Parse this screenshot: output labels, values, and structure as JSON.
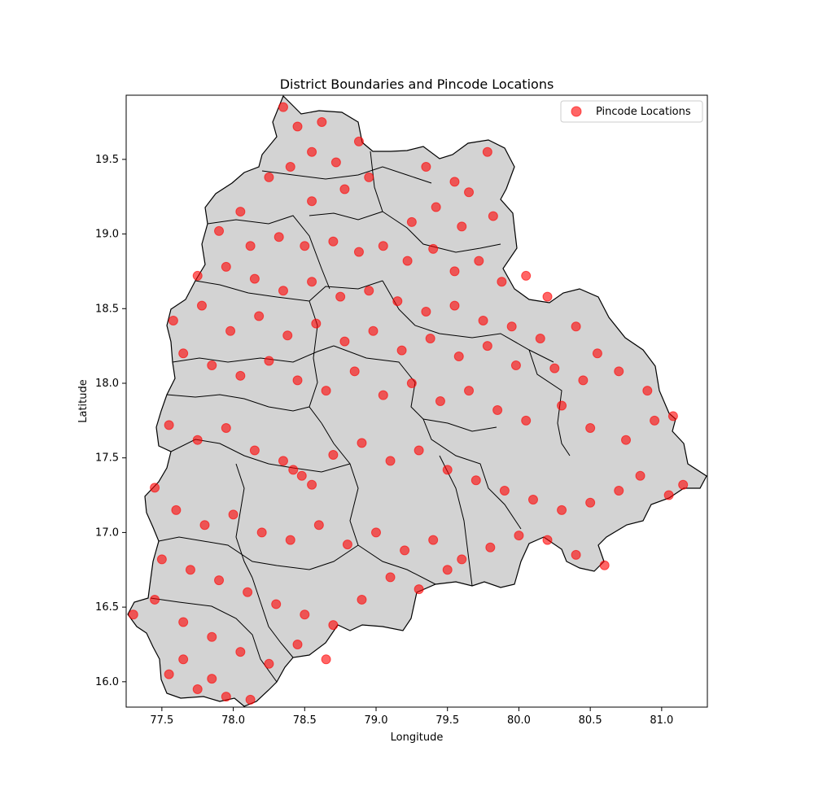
{
  "chart_data": {
    "type": "scatter",
    "title": "District Boundaries and Pincode Locations",
    "xlabel": "Longitude",
    "ylabel": "Latitude",
    "xlim": [
      77.25,
      81.32
    ],
    "ylim": [
      15.83,
      19.93
    ],
    "xticks": [
      77.5,
      78.0,
      78.5,
      79.0,
      79.5,
      80.0,
      80.5,
      81.0
    ],
    "yticks": [
      16.0,
      16.5,
      17.0,
      17.5,
      18.0,
      18.5,
      19.0,
      19.5
    ],
    "grid": false,
    "legend_position": "top-right",
    "series": [
      {
        "name": "Pincode Locations",
        "color": "#ff0000",
        "points": [
          [
            78.35,
            19.85
          ],
          [
            78.45,
            19.72
          ],
          [
            78.62,
            19.75
          ],
          [
            78.88,
            19.62
          ],
          [
            78.55,
            19.55
          ],
          [
            78.72,
            19.48
          ],
          [
            78.95,
            19.38
          ],
          [
            78.4,
            19.45
          ],
          [
            78.25,
            19.38
          ],
          [
            78.55,
            19.22
          ],
          [
            78.78,
            19.3
          ],
          [
            79.35,
            19.45
          ],
          [
            79.55,
            19.35
          ],
          [
            79.78,
            19.55
          ],
          [
            79.65,
            19.28
          ],
          [
            79.42,
            19.18
          ],
          [
            79.25,
            19.08
          ],
          [
            79.6,
            19.05
          ],
          [
            79.82,
            19.12
          ],
          [
            78.05,
            19.15
          ],
          [
            77.9,
            19.02
          ],
          [
            78.12,
            18.92
          ],
          [
            78.32,
            18.98
          ],
          [
            78.5,
            18.92
          ],
          [
            78.7,
            18.95
          ],
          [
            78.88,
            18.88
          ],
          [
            79.05,
            18.92
          ],
          [
            79.22,
            18.82
          ],
          [
            79.4,
            18.9
          ],
          [
            79.55,
            18.75
          ],
          [
            79.72,
            18.82
          ],
          [
            79.88,
            18.68
          ],
          [
            80.05,
            18.72
          ],
          [
            80.2,
            18.58
          ],
          [
            77.75,
            18.72
          ],
          [
            77.95,
            18.78
          ],
          [
            78.15,
            18.7
          ],
          [
            78.35,
            18.62
          ],
          [
            78.55,
            18.68
          ],
          [
            78.75,
            18.58
          ],
          [
            78.95,
            18.62
          ],
          [
            79.15,
            18.55
          ],
          [
            79.35,
            18.48
          ],
          [
            79.55,
            18.52
          ],
          [
            79.75,
            18.42
          ],
          [
            79.95,
            18.38
          ],
          [
            80.15,
            18.3
          ],
          [
            80.4,
            18.38
          ],
          [
            80.55,
            18.2
          ],
          [
            77.58,
            18.42
          ],
          [
            77.78,
            18.52
          ],
          [
            77.98,
            18.35
          ],
          [
            78.18,
            18.45
          ],
          [
            78.38,
            18.32
          ],
          [
            78.58,
            18.4
          ],
          [
            78.78,
            18.28
          ],
          [
            78.98,
            18.35
          ],
          [
            79.18,
            18.22
          ],
          [
            79.38,
            18.3
          ],
          [
            79.58,
            18.18
          ],
          [
            79.78,
            18.25
          ],
          [
            79.98,
            18.12
          ],
          [
            80.25,
            18.1
          ],
          [
            80.45,
            18.02
          ],
          [
            80.7,
            18.08
          ],
          [
            80.9,
            17.95
          ],
          [
            77.65,
            18.2
          ],
          [
            77.85,
            18.12
          ],
          [
            78.05,
            18.05
          ],
          [
            78.25,
            18.15
          ],
          [
            78.45,
            18.02
          ],
          [
            78.65,
            17.95
          ],
          [
            78.85,
            18.08
          ],
          [
            79.05,
            17.92
          ],
          [
            79.25,
            18.0
          ],
          [
            79.45,
            17.88
          ],
          [
            79.65,
            17.95
          ],
          [
            79.85,
            17.82
          ],
          [
            80.05,
            17.75
          ],
          [
            80.3,
            17.85
          ],
          [
            80.5,
            17.7
          ],
          [
            80.75,
            17.62
          ],
          [
            80.95,
            17.75
          ],
          [
            81.08,
            17.78
          ],
          [
            77.55,
            17.72
          ],
          [
            77.75,
            17.62
          ],
          [
            77.95,
            17.7
          ],
          [
            78.15,
            17.55
          ],
          [
            78.35,
            17.48
          ],
          [
            78.48,
            17.38
          ],
          [
            78.55,
            17.32
          ],
          [
            78.42,
            17.42
          ],
          [
            78.7,
            17.52
          ],
          [
            78.9,
            17.6
          ],
          [
            79.1,
            17.48
          ],
          [
            79.3,
            17.55
          ],
          [
            79.5,
            17.42
          ],
          [
            79.7,
            17.35
          ],
          [
            79.9,
            17.28
          ],
          [
            80.1,
            17.22
          ],
          [
            80.3,
            17.15
          ],
          [
            80.5,
            17.2
          ],
          [
            80.7,
            17.28
          ],
          [
            80.85,
            17.38
          ],
          [
            81.05,
            17.25
          ],
          [
            81.15,
            17.32
          ],
          [
            77.45,
            17.3
          ],
          [
            77.6,
            17.15
          ],
          [
            77.8,
            17.05
          ],
          [
            78.0,
            17.12
          ],
          [
            78.2,
            17.0
          ],
          [
            78.4,
            16.95
          ],
          [
            78.6,
            17.05
          ],
          [
            78.8,
            16.92
          ],
          [
            79.0,
            17.0
          ],
          [
            79.2,
            16.88
          ],
          [
            79.4,
            16.95
          ],
          [
            79.6,
            16.82
          ],
          [
            79.8,
            16.9
          ],
          [
            80.0,
            16.98
          ],
          [
            80.2,
            16.95
          ],
          [
            80.4,
            16.85
          ],
          [
            80.6,
            16.78
          ],
          [
            77.5,
            16.82
          ],
          [
            77.7,
            16.75
          ],
          [
            77.9,
            16.68
          ],
          [
            78.1,
            16.6
          ],
          [
            78.3,
            16.52
          ],
          [
            78.5,
            16.45
          ],
          [
            78.7,
            16.38
          ],
          [
            78.9,
            16.55
          ],
          [
            79.1,
            16.7
          ],
          [
            79.3,
            16.62
          ],
          [
            79.5,
            16.75
          ],
          [
            77.3,
            16.45
          ],
          [
            77.45,
            16.55
          ],
          [
            77.65,
            16.4
          ],
          [
            77.85,
            16.3
          ],
          [
            78.05,
            16.2
          ],
          [
            78.25,
            16.12
          ],
          [
            78.45,
            16.25
          ],
          [
            78.65,
            16.15
          ],
          [
            77.55,
            16.05
          ],
          [
            77.75,
            15.95
          ],
          [
            77.95,
            15.9
          ],
          [
            78.12,
            15.88
          ],
          [
            77.65,
            16.15
          ],
          [
            77.85,
            16.02
          ]
        ]
      }
    ]
  }
}
